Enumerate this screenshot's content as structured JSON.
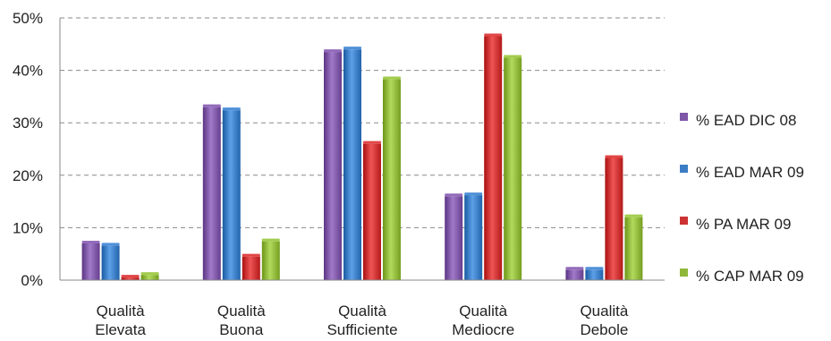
{
  "chart_data": {
    "type": "bar",
    "categories": [
      [
        "Qualità",
        "Elevata"
      ],
      [
        "Qualità",
        "Buona"
      ],
      [
        "Qualità",
        "Sufficiente"
      ],
      [
        "Qualità",
        "Mediocre"
      ],
      [
        "Qualità",
        "Debole"
      ]
    ],
    "series": [
      {
        "name": "% EAD DIC 08",
        "color": "#7e57a6",
        "values": [
          7,
          33,
          43.5,
          16,
          2
        ]
      },
      {
        "name": "% EAD MAR 09",
        "color": "#3b7dc4",
        "values": [
          6.6,
          32.4,
          44,
          16.2,
          2
        ]
      },
      {
        "name": "% PA MAR 09",
        "color": "#cc3232",
        "values": [
          0.5,
          4.5,
          26,
          46.5,
          23.3
        ]
      },
      {
        "name": "% CAP MAR 09",
        "color": "#8fb83a",
        "values": [
          1,
          7.4,
          38.3,
          42.4,
          12
        ]
      }
    ],
    "ylim": [
      0,
      50
    ],
    "yticks": [
      "0%",
      "10%",
      "20%",
      "30%",
      "40%",
      "50%"
    ],
    "grid": true,
    "legend_position": "right"
  }
}
